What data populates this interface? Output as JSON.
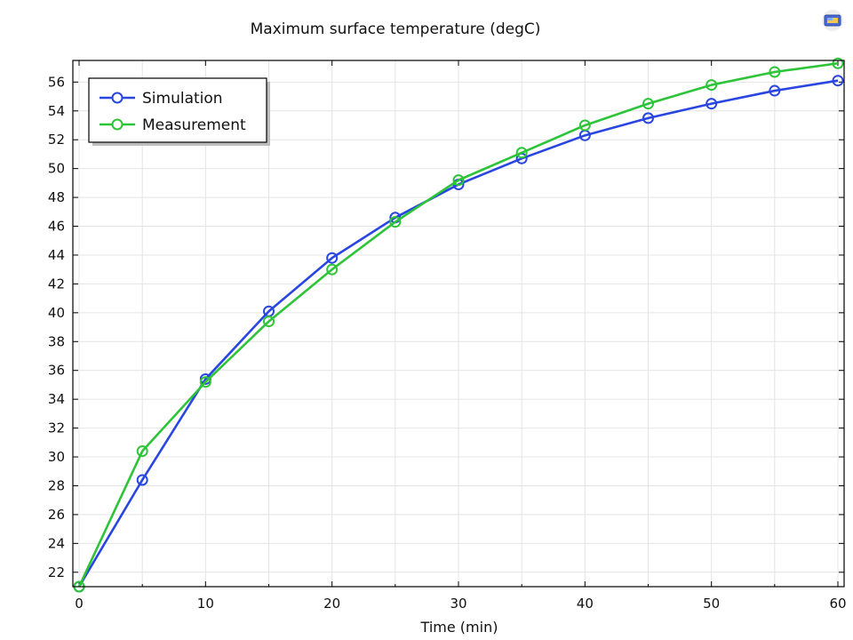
{
  "chart_data": {
    "type": "line",
    "title": "Maximum surface temperature (degC)",
    "xlabel": "Time (min)",
    "ylabel": "",
    "xlim": [
      0,
      60
    ],
    "ylim": [
      21,
      57.5
    ],
    "xticks": [
      0,
      10,
      20,
      30,
      40,
      50,
      60
    ],
    "yticks": [
      22,
      24,
      26,
      28,
      30,
      32,
      34,
      36,
      38,
      40,
      42,
      44,
      46,
      48,
      50,
      52,
      54,
      56
    ],
    "grid": true,
    "legend_position": "top-left",
    "x": [
      0,
      5,
      10,
      15,
      20,
      25,
      30,
      35,
      40,
      45,
      50,
      55,
      60
    ],
    "series": [
      {
        "name": "Simulation",
        "color": "#2a46e0",
        "marker": "circle",
        "values": [
          21.0,
          28.4,
          35.4,
          40.1,
          43.8,
          46.6,
          48.9,
          50.7,
          52.3,
          53.5,
          54.5,
          55.4,
          56.1
        ]
      },
      {
        "name": "Measurement",
        "color": "#2ec43a",
        "marker": "circle",
        "values": [
          21.0,
          30.4,
          35.2,
          39.4,
          43.0,
          46.3,
          49.2,
          51.1,
          53.0,
          54.5,
          55.8,
          56.7,
          57.3
        ]
      }
    ]
  },
  "toolbar": {
    "export_icon": "image-export-icon"
  }
}
